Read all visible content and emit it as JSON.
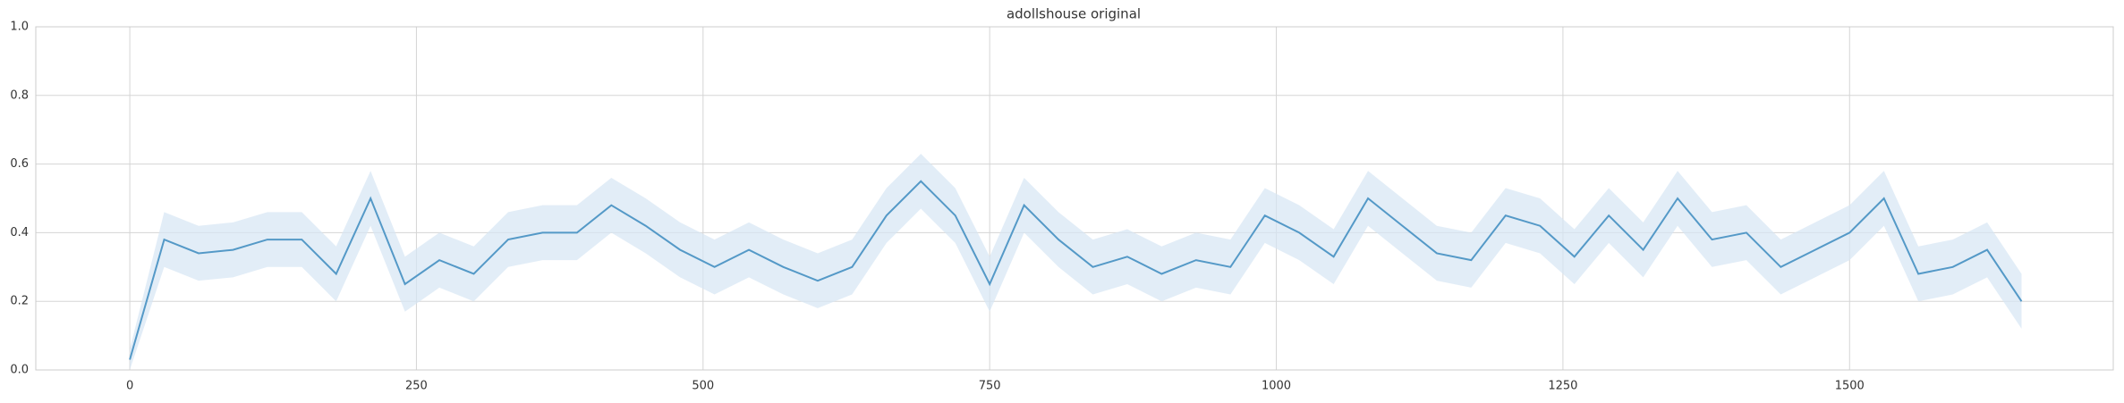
{
  "chart_data": {
    "type": "line",
    "title": "adollshouse original",
    "x": [
      0,
      30,
      60,
      90,
      120,
      150,
      180,
      210,
      240,
      270,
      300,
      330,
      360,
      390,
      420,
      450,
      480,
      510,
      540,
      570,
      600,
      630,
      660,
      690,
      720,
      750,
      780,
      810,
      840,
      870,
      900,
      930,
      960,
      990,
      1020,
      1050,
      1080,
      1110,
      1140,
      1170,
      1200,
      1230,
      1260,
      1290,
      1320,
      1350,
      1380,
      1410,
      1440,
      1470,
      1500,
      1530,
      1560,
      1590,
      1620,
      1650
    ],
    "values": [
      0.03,
      0.38,
      0.34,
      0.35,
      0.38,
      0.38,
      0.28,
      0.5,
      0.25,
      0.32,
      0.28,
      0.38,
      0.4,
      0.4,
      0.48,
      0.42,
      0.35,
      0.3,
      0.35,
      0.3,
      0.26,
      0.3,
      0.45,
      0.55,
      0.45,
      0.25,
      0.48,
      0.38,
      0.3,
      0.33,
      0.28,
      0.32,
      0.3,
      0.45,
      0.4,
      0.33,
      0.5,
      0.42,
      0.34,
      0.32,
      0.45,
      0.42,
      0.33,
      0.45,
      0.35,
      0.5,
      0.38,
      0.4,
      0.3,
      0.35,
      0.4,
      0.5,
      0.28,
      0.3,
      0.35,
      0.2
    ],
    "band_lower": [
      0,
      0.3,
      0.26,
      0.27,
      0.3,
      0.3,
      0.2,
      0.42,
      0.17,
      0.24,
      0.2,
      0.3,
      0.32,
      0.32,
      0.4,
      0.34,
      0.27,
      0.22,
      0.27,
      0.22,
      0.18,
      0.22,
      0.37,
      0.47,
      0.37,
      0.17,
      0.4,
      0.3,
      0.22,
      0.25,
      0.2,
      0.24,
      0.22,
      0.37,
      0.32,
      0.25,
      0.42,
      0.34,
      0.26,
      0.24,
      0.37,
      0.34,
      0.25,
      0.37,
      0.27,
      0.42,
      0.3,
      0.32,
      0.22,
      0.27,
      0.32,
      0.42,
      0.2,
      0.22,
      0.27,
      0.12
    ],
    "band_upper": [
      0.06,
      0.46,
      0.42,
      0.43,
      0.46,
      0.46,
      0.36,
      0.58,
      0.33,
      0.4,
      0.36,
      0.46,
      0.48,
      0.48,
      0.56,
      0.5,
      0.43,
      0.38,
      0.43,
      0.38,
      0.34,
      0.38,
      0.53,
      0.63,
      0.53,
      0.33,
      0.56,
      0.46,
      0.38,
      0.41,
      0.36,
      0.4,
      0.38,
      0.53,
      0.48,
      0.41,
      0.58,
      0.5,
      0.42,
      0.4,
      0.53,
      0.5,
      0.41,
      0.53,
      0.43,
      0.58,
      0.46,
      0.48,
      0.38,
      0.43,
      0.48,
      0.58,
      0.36,
      0.38,
      0.43,
      0.28
    ],
    "color": "#5499c7",
    "band_color": "#d6e6f4",
    "xlim": [
      -82,
      1730
    ],
    "xticks": [
      0,
      250,
      500,
      750,
      1000,
      1250,
      1500
    ],
    "ylim": [
      0,
      1
    ],
    "yticks": [
      {
        "value": 0,
        "label": "0.0"
      },
      {
        "value": 0.2,
        "label": "0.2"
      },
      {
        "value": 0.4,
        "label": "0.4"
      },
      {
        "value": 0.6,
        "label": "0.6"
      },
      {
        "value": 0.8,
        "label": "0.8"
      },
      {
        "value": 1,
        "label": "1.0"
      }
    ],
    "grid": true
  }
}
